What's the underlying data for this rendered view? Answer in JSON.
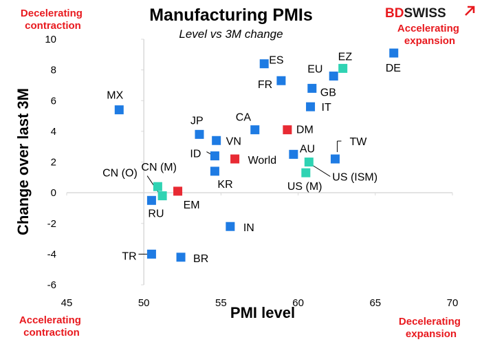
{
  "title": "Manufacturing PMIs",
  "subtitle": "Level vs 3M change",
  "brand": {
    "bd": "BD",
    "swiss": "SWISS",
    "bd_color": "#e8191e",
    "swiss_color": "#1a1a1a"
  },
  "corners": {
    "top_left": [
      "Decelerating",
      "contraction"
    ],
    "top_right": [
      "Accelerating",
      "expansion"
    ],
    "bottom_left": [
      "Accelerating",
      "contraction"
    ],
    "bottom_right": [
      "Decelerating",
      "expansion"
    ]
  },
  "colors": {
    "country": "#1e7be3",
    "aggregate": "#2fd3b3",
    "region": "#e82a33",
    "corner_text": "#e8191e"
  },
  "chart_data": {
    "type": "scatter",
    "title": "Manufacturing PMIs",
    "subtitle": "Level vs 3M change",
    "xlabel": "PMI level",
    "ylabel": "Change over last 3M",
    "xlim": [
      45,
      70
    ],
    "ylim": [
      -6,
      10
    ],
    "xticks": [
      45,
      50,
      55,
      60,
      65,
      70
    ],
    "yticks": [
      -6,
      -4,
      -2,
      0,
      2,
      4,
      6,
      8,
      10
    ],
    "axes_cross": {
      "x": 50,
      "y": 0
    },
    "grid": false,
    "points": [
      {
        "label": "DE",
        "x": 66.2,
        "y": 9.1,
        "group": "country"
      },
      {
        "label": "EZ",
        "x": 62.9,
        "y": 8.1,
        "group": "aggregate"
      },
      {
        "label": "EU",
        "x": 62.3,
        "y": 7.6,
        "group": "country"
      },
      {
        "label": "ES",
        "x": 57.8,
        "y": 8.4,
        "group": "country"
      },
      {
        "label": "FR",
        "x": 58.9,
        "y": 7.3,
        "group": "country"
      },
      {
        "label": "GB",
        "x": 60.9,
        "y": 6.8,
        "group": "country"
      },
      {
        "label": "IT",
        "x": 60.8,
        "y": 5.6,
        "group": "country"
      },
      {
        "label": "MX",
        "x": 48.4,
        "y": 5.4,
        "group": "country"
      },
      {
        "label": "CA",
        "x": 57.2,
        "y": 4.1,
        "group": "country"
      },
      {
        "label": "DM",
        "x": 59.3,
        "y": 4.1,
        "group": "region"
      },
      {
        "label": "JP",
        "x": 53.6,
        "y": 3.8,
        "group": "country"
      },
      {
        "label": "VN",
        "x": 54.7,
        "y": 3.4,
        "group": "country"
      },
      {
        "label": "ID",
        "x": 54.6,
        "y": 2.4,
        "group": "country"
      },
      {
        "label": "World",
        "x": 55.9,
        "y": 2.2,
        "group": "region"
      },
      {
        "label": "AU",
        "x": 59.7,
        "y": 2.5,
        "group": "country"
      },
      {
        "label": "TW",
        "x": 62.4,
        "y": 2.2,
        "group": "country"
      },
      {
        "label": "US (ISM)",
        "x": 60.7,
        "y": 2.0,
        "group": "aggregate"
      },
      {
        "label": "US (M)",
        "x": 60.5,
        "y": 1.3,
        "group": "aggregate"
      },
      {
        "label": "KR",
        "x": 54.6,
        "y": 1.4,
        "group": "country"
      },
      {
        "label": "CN (M)",
        "x": 50.9,
        "y": 0.4,
        "group": "aggregate"
      },
      {
        "label": "CN (O)",
        "x": 51.2,
        "y": -0.2,
        "group": "aggregate"
      },
      {
        "label": "EM",
        "x": 52.2,
        "y": 0.1,
        "group": "region"
      },
      {
        "label": "RU",
        "x": 50.5,
        "y": -0.5,
        "group": "country"
      },
      {
        "label": "IN",
        "x": 55.6,
        "y": -2.2,
        "group": "country"
      },
      {
        "label": "TR",
        "x": 50.5,
        "y": -4.0,
        "group": "country"
      },
      {
        "label": "BR",
        "x": 52.4,
        "y": -4.2,
        "group": "country"
      }
    ]
  }
}
